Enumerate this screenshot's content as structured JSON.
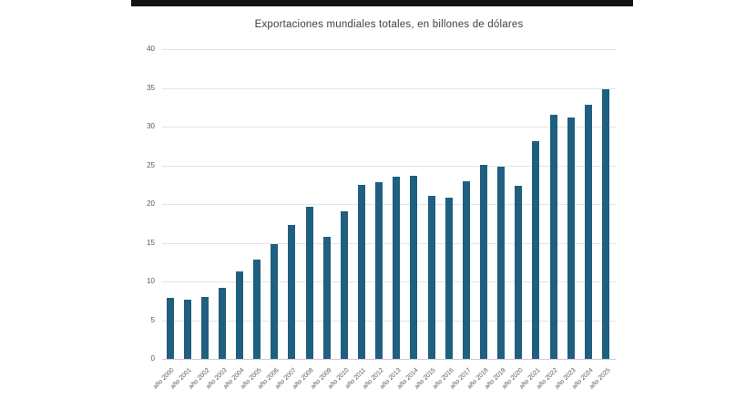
{
  "window": {
    "top_bar": "window-edge"
  },
  "chart_data": {
    "type": "bar",
    "title": "Exportaciones mundiales totales, en billones de dólares",
    "categories": [
      "año 2000",
      "año 2001",
      "año 2002",
      "año 2003",
      "año 2004",
      "año 2005",
      "año 2006",
      "año 2007",
      "año 2008",
      "año 2009",
      "año 2010",
      "año 2011",
      "año 2012",
      "año 2013",
      "año 2014",
      "año 2015",
      "año 2016",
      "año 2017",
      "año 2018",
      "año 2019",
      "año 2020",
      "año 2021",
      "año 2022",
      "año 2023",
      "año 2024",
      "año 2025"
    ],
    "values": [
      7.9,
      7.6,
      8.0,
      9.2,
      11.3,
      12.8,
      14.8,
      17.3,
      19.7,
      15.8,
      19.1,
      22.5,
      22.8,
      23.5,
      23.7,
      21.1,
      20.8,
      22.9,
      25.1,
      24.8,
      22.4,
      28.1,
      31.5,
      31.2,
      32.8,
      34.8
    ],
    "xlabel": "",
    "ylabel": "",
    "ylim": [
      0,
      40
    ],
    "ytick_step": 5,
    "grid": true,
    "legend": "none",
    "bar_color": "#1f5f80",
    "colors": {
      "gridline": "#e4e4e4",
      "axis_line": "#cccccc",
      "tick_label": "#595959",
      "title": "#3f3f3f",
      "background": "#ffffff"
    }
  }
}
